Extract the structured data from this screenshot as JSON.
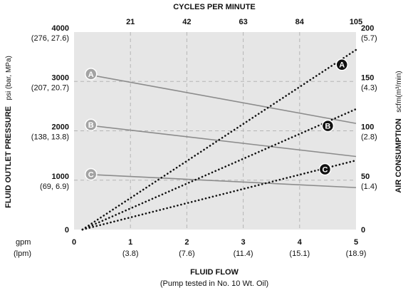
{
  "chart_data": {
    "type": "line",
    "top_axis_title": "CYCLES PER MINUTE",
    "top_ticks": [
      "21",
      "42",
      "63",
      "84",
      "105"
    ],
    "bottom_axis_title": "FLUID FLOW",
    "bottom_axis_subtitle": "(Pump tested in No. 10 Wt. Oil)",
    "bottom_unit_primary": "gpm",
    "bottom_unit_secondary": "(lpm)",
    "bottom_ticks": [
      {
        "value": 0,
        "label": "0",
        "sub": ""
      },
      {
        "value": 1,
        "label": "1",
        "sub": "(3.8)"
      },
      {
        "value": 2,
        "label": "2",
        "sub": "(7.6)"
      },
      {
        "value": 3,
        "label": "3",
        "sub": "(11.4)"
      },
      {
        "value": 4,
        "label": "4",
        "sub": "(15.1)"
      },
      {
        "value": 5,
        "label": "5",
        "sub": "(18.9)"
      }
    ],
    "left_axis_title": "FLUID OUTLET PRESSURE",
    "left_axis_units": "psi (bar, MPa)",
    "left_ticks": [
      {
        "value": 0,
        "label": "0",
        "sub": ""
      },
      {
        "value": 1000,
        "label": "1000",
        "sub": "(69, 6.9)"
      },
      {
        "value": 2000,
        "label": "2000",
        "sub": "(138, 13.8)"
      },
      {
        "value": 3000,
        "label": "3000",
        "sub": "(207, 20.7)"
      },
      {
        "value": 4000,
        "label": "4000",
        "sub": "(276, 27.6)"
      }
    ],
    "right_axis_title": "AIR CONSUMPTION",
    "right_axis_units": "scfm(m³/min)",
    "right_ticks": [
      {
        "value": 0,
        "label": "0",
        "sub": ""
      },
      {
        "value": 50,
        "label": "50",
        "sub": "(1.4)"
      },
      {
        "value": 100,
        "label": "100",
        "sub": "(2.8)"
      },
      {
        "value": 150,
        "label": "150",
        "sub": "(4.3)"
      },
      {
        "value": 200,
        "label": "200",
        "sub": "(5.7)"
      }
    ],
    "xlim": [
      0,
      5
    ],
    "ylim_left": [
      0,
      4000
    ],
    "ylim_right": [
      0,
      200
    ],
    "grid": true,
    "background": "#e6e6e6",
    "pressure_series": [
      {
        "label": "A",
        "x": [
          0.2,
          5.0
        ],
        "y": [
          3150,
          2150
        ]
      },
      {
        "label": "B",
        "x": [
          0.2,
          5.0
        ],
        "y": [
          2120,
          1480
        ]
      },
      {
        "label": "C",
        "x": [
          0.2,
          5.0
        ],
        "y": [
          1120,
          850
        ]
      }
    ],
    "air_series": [
      {
        "label": "A",
        "x": [
          0.15,
          5.0
        ],
        "y": [
          0,
          182
        ]
      },
      {
        "label": "B",
        "x": [
          0.15,
          5.0
        ],
        "y": [
          0,
          122
        ]
      },
      {
        "label": "C",
        "x": [
          0.15,
          5.0
        ],
        "y": [
          0,
          70
        ]
      }
    ],
    "pressure_badges": [
      {
        "label": "A",
        "x": 0.3,
        "y": 3150
      },
      {
        "label": "B",
        "x": 0.3,
        "y": 2120
      },
      {
        "label": "C",
        "x": 0.3,
        "y": 1120
      }
    ],
    "air_badges": [
      {
        "label": "A",
        "x": 4.75,
        "y": 167
      },
      {
        "label": "B",
        "x": 4.5,
        "y": 105
      },
      {
        "label": "C",
        "x": 4.45,
        "y": 61
      }
    ],
    "colors": {
      "pressure": "#8c8c8c",
      "air": "#111111",
      "plot_background": "#e6e6e6",
      "grid": "#b5b5b5"
    }
  }
}
